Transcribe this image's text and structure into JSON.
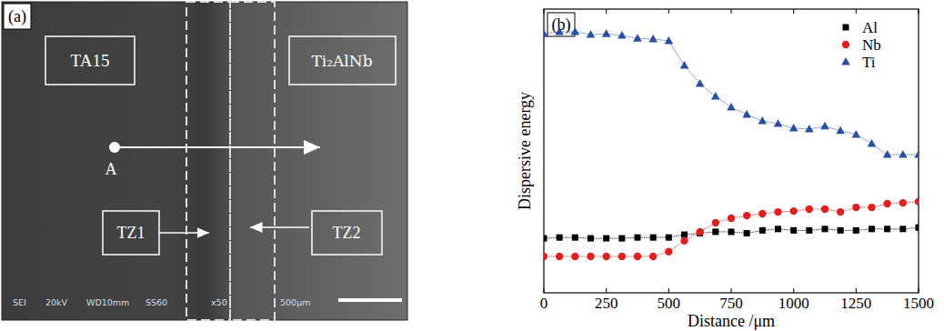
{
  "panel_a": {
    "label": "(a)",
    "left_region": "TA15",
    "right_region": "Ti₂AlNb",
    "point": "A",
    "zone_1": "TZ1",
    "zone_2": "TZ2",
    "info_bar": [
      "SEI",
      "20kV",
      "WD10mm",
      "SS60",
      "x50",
      "500μm"
    ]
  },
  "chart_data": {
    "type": "line",
    "title": "(b)",
    "x_label": "Distance /μm",
    "y_label": "Dispersive energy",
    "x": [
      0,
      62.5,
      125,
      187.5,
      250,
      312.5,
      375,
      437.5,
      500,
      562.5,
      625,
      687.5,
      750,
      812.5,
      875,
      937.5,
      1000,
      1062.5,
      1125,
      1187.5,
      1250,
      1312.5,
      1375,
      1437.5,
      1500
    ],
    "series": [
      {
        "name": "Al",
        "color": "#000000",
        "marker": "square",
        "values": [
          19.2,
          19.5,
          19.5,
          19.2,
          19.2,
          19.2,
          19.5,
          19.5,
          19.5,
          20.5,
          21,
          21.5,
          21.5,
          21,
          22,
          22.5,
          22,
          22,
          22.5,
          22,
          22,
          22.5,
          22.5,
          22.5,
          23
        ]
      },
      {
        "name": "Nb",
        "color": "#e02020",
        "marker": "circle",
        "values": [
          12.8,
          12.8,
          12.8,
          12.8,
          12.8,
          12.8,
          12.8,
          12.8,
          14.5,
          18.3,
          21.5,
          24.7,
          26.3,
          27.2,
          27.9,
          28.5,
          28.8,
          29.5,
          29.5,
          28.5,
          30.1,
          30.1,
          31.4,
          31.7,
          32.1
        ]
      },
      {
        "name": "Ti",
        "color": "#2a4ea0",
        "marker": "triangle",
        "values": [
          91.3,
          92,
          92,
          91,
          91.3,
          90.7,
          89.7,
          89.4,
          88.8,
          80.1,
          73.7,
          69.2,
          65.4,
          62.8,
          60.6,
          59.6,
          58,
          57.7,
          58.7,
          57.1,
          55.8,
          52.6,
          48.7,
          48.7,
          48.7
        ]
      }
    ],
    "xlim": [
      0,
      1500
    ],
    "xticks": [
      0,
      250,
      500,
      750,
      1000,
      1250,
      1500
    ],
    "ylim": [
      0,
      100
    ],
    "yticks": [],
    "tick_labels": "x",
    "legend": "top-right",
    "grid": false
  }
}
